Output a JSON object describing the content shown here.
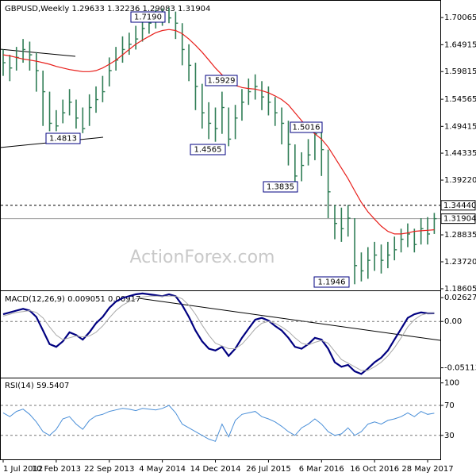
{
  "chart_data": [
    {
      "type": "ohlc",
      "title": "GBPUSD,Weekly  1.29633 1.32236 1.29083 1.31904",
      "watermark": "ActionForex.com",
      "categories": [
        "1 Jul 2012",
        null,
        null,
        null,
        null,
        null,
        null,
        null,
        "10 Feb 2013",
        null,
        null,
        null,
        null,
        null,
        null,
        null,
        "22 Sep 2013",
        null,
        null,
        null,
        null,
        null,
        null,
        null,
        "4 May 2014",
        null,
        null,
        null,
        null,
        null,
        null,
        null,
        "14 Dec 2014",
        null,
        null,
        null,
        null,
        null,
        null,
        null,
        "26 Jul 2015",
        null,
        null,
        null,
        null,
        null,
        null,
        null,
        "6 Mar 2016",
        null,
        null,
        null,
        null,
        null,
        null,
        null,
        "16 Oct 2016",
        null,
        null,
        null,
        null,
        null,
        null,
        null,
        "28 May 2017",
        null
      ],
      "ohlc": {
        "color": "#2f7d55",
        "high": [
          1.64,
          1.63,
          1.645,
          1.66,
          1.655,
          1.635,
          1.6,
          1.56,
          1.525,
          1.545,
          1.565,
          1.545,
          1.53,
          1.555,
          1.57,
          1.59,
          1.625,
          1.645,
          1.665,
          1.672,
          1.685,
          1.7,
          1.71,
          1.716,
          1.718,
          1.719,
          1.712,
          1.69,
          1.65,
          1.615,
          1.575,
          1.54,
          1.53,
          1.56,
          1.53,
          1.535,
          1.565,
          1.585,
          1.5929,
          1.58,
          1.57,
          1.55,
          1.53,
          1.505,
          1.46,
          1.445,
          1.47,
          1.5016,
          1.49,
          1.45,
          1.345,
          1.34,
          1.345,
          1.32,
          1.255,
          1.265,
          1.275,
          1.27,
          1.275,
          1.285,
          1.3,
          1.31,
          1.3,
          1.32,
          1.322,
          1.33
        ],
        "low": [
          1.59,
          1.58,
          1.6,
          1.615,
          1.6,
          1.56,
          1.495,
          1.485,
          1.485,
          1.5,
          1.515,
          1.49,
          1.4813,
          1.495,
          1.52,
          1.54,
          1.57,
          1.6,
          1.615,
          1.63,
          1.64,
          1.655,
          1.67,
          1.68,
          1.685,
          1.69,
          1.66,
          1.61,
          1.58,
          1.525,
          1.49,
          1.47,
          1.465,
          1.48,
          1.4565,
          1.47,
          1.505,
          1.535,
          1.545,
          1.525,
          1.515,
          1.495,
          1.46,
          1.42,
          1.3835,
          1.39,
          1.42,
          1.43,
          1.4,
          1.32,
          1.28,
          1.275,
          1.285,
          1.1946,
          1.2,
          1.205,
          1.22,
          1.215,
          1.225,
          1.24,
          1.255,
          1.265,
          1.255,
          1.27,
          1.27,
          1.29
        ],
        "close": [
          1.615,
          1.605,
          1.625,
          1.64,
          1.63,
          1.6,
          1.56,
          1.5,
          1.495,
          1.52,
          1.54,
          1.51,
          1.49,
          1.53,
          1.545,
          1.56,
          1.6,
          1.62,
          1.64,
          1.65,
          1.66,
          1.68,
          1.69,
          1.7,
          1.705,
          1.7,
          1.69,
          1.64,
          1.61,
          1.57,
          1.52,
          1.5,
          1.49,
          1.53,
          1.47,
          1.51,
          1.54,
          1.56,
          1.57,
          1.55,
          1.54,
          1.52,
          1.5,
          1.46,
          1.4,
          1.42,
          1.44,
          1.48,
          1.45,
          1.37,
          1.31,
          1.3,
          1.32,
          1.23,
          1.22,
          1.24,
          1.25,
          1.24,
          1.25,
          1.26,
          1.28,
          1.29,
          1.27,
          1.3,
          1.29,
          1.31904
        ]
      },
      "overlay": {
        "color": "#e8201c",
        "values": [
          1.63,
          1.628,
          1.625,
          1.622,
          1.62,
          1.618,
          1.615,
          1.612,
          1.608,
          1.605,
          1.602,
          1.6,
          1.598,
          1.598,
          1.6,
          1.605,
          1.612,
          1.62,
          1.63,
          1.64,
          1.65,
          1.658,
          1.665,
          1.672,
          1.676,
          1.678,
          1.676,
          1.67,
          1.66,
          1.648,
          1.635,
          1.62,
          1.605,
          1.592,
          1.58,
          1.572,
          1.568,
          1.566,
          1.565,
          1.562,
          1.558,
          1.552,
          1.545,
          1.535,
          1.52,
          1.505,
          1.49,
          1.48,
          1.47,
          1.455,
          1.435,
          1.415,
          1.395,
          1.372,
          1.35,
          1.332,
          1.318,
          1.305,
          1.295,
          1.29,
          1.29,
          1.292,
          1.295,
          1.296,
          1.297,
          1.298
        ]
      },
      "annotations": [
        "1.7190",
        "1.5929",
        "1.4813",
        "1.5016",
        "1.4565",
        "1.3835",
        "1.1946"
      ],
      "levels": [
        {
          "value": 1.3444,
          "label": "1.34440",
          "style": "dashed"
        },
        {
          "value": 1.31904,
          "label": "1.31904",
          "style": "solid"
        }
      ],
      "ylim": [
        1.183,
        1.734
      ],
      "yticks": [
        1.70065,
        1.64915,
        1.59815,
        1.54565,
        1.49415,
        1.44335,
        {
          "value": 1.3922,
          "label": "1.39220"
        },
        1.28835,
        {
          "value": 1.2372,
          "label": "1.23720"
        },
        1.18605
      ]
    },
    {
      "type": "line",
      "title": "MACD(12,26,9) 0.009051 0.00917",
      "series": [
        {
          "color": "#000080",
          "width": 2.2,
          "values": [
            0.008,
            0.01,
            0.012,
            0.014,
            0.012,
            0.005,
            -0.01,
            -0.025,
            -0.028,
            -0.022,
            -0.012,
            -0.015,
            -0.02,
            -0.012,
            -0.002,
            0.005,
            0.015,
            0.022,
            0.026,
            0.028,
            0.03,
            0.031,
            0.03,
            0.029,
            0.028,
            0.03,
            0.028,
            0.018,
            0.005,
            -0.01,
            -0.022,
            -0.03,
            -0.032,
            -0.028,
            -0.038,
            -0.03,
            -0.018,
            -0.008,
            0.002,
            0.004,
            0.001,
            -0.005,
            -0.01,
            -0.018,
            -0.028,
            -0.03,
            -0.025,
            -0.018,
            -0.02,
            -0.03,
            -0.045,
            -0.05,
            -0.048,
            -0.055,
            -0.058,
            -0.052,
            -0.045,
            -0.04,
            -0.032,
            -0.02,
            -0.008,
            0.004,
            0.008,
            0.01,
            0.009,
            0.009051
          ]
        },
        {
          "color": "#a8a8a8",
          "width": 1,
          "values": [
            0.006,
            0.008,
            0.01,
            0.011,
            0.012,
            0.01,
            0.004,
            -0.006,
            -0.015,
            -0.02,
            -0.018,
            -0.016,
            -0.017,
            -0.016,
            -0.012,
            -0.005,
            0.004,
            0.012,
            0.018,
            0.022,
            0.025,
            0.027,
            0.028,
            0.028,
            0.028,
            0.028,
            0.028,
            0.025,
            0.018,
            0.008,
            -0.004,
            -0.015,
            -0.024,
            -0.027,
            -0.03,
            -0.03,
            -0.025,
            -0.017,
            -0.008,
            -0.002,
            0.0,
            -0.002,
            -0.006,
            -0.011,
            -0.018,
            -0.024,
            -0.026,
            -0.023,
            -0.021,
            -0.024,
            -0.033,
            -0.042,
            -0.046,
            -0.05,
            -0.054,
            -0.054,
            -0.05,
            -0.045,
            -0.038,
            -0.029,
            -0.018,
            -0.006,
            0.002,
            0.007,
            0.009,
            0.00917
          ]
        }
      ],
      "dashed_levels": [
        0
      ],
      "ylim": [
        -0.062,
        0.0335
      ],
      "yticks": [
        0.026276,
        {
          "value": 0,
          "label": "0.00"
        },
        -0.051137
      ]
    },
    {
      "type": "line",
      "title": "RSI(14) 59.5407",
      "series": [
        {
          "color": "#4a8fd8",
          "width": 1,
          "values": [
            60,
            55,
            62,
            65,
            58,
            48,
            35,
            30,
            38,
            52,
            55,
            45,
            38,
            50,
            56,
            58,
            62,
            64,
            66,
            65,
            63,
            66,
            65,
            64,
            66,
            70,
            60,
            45,
            40,
            35,
            30,
            25,
            22,
            45,
            28,
            50,
            58,
            60,
            62,
            55,
            52,
            48,
            42,
            35,
            30,
            40,
            45,
            52,
            45,
            35,
            30,
            32,
            40,
            30,
            35,
            45,
            48,
            45,
            50,
            52,
            55,
            60,
            55,
            62,
            58,
            59.5407
          ]
        }
      ],
      "dashed_levels": [
        70,
        30
      ],
      "ylim": [
        -2,
        106
      ],
      "yticks": [
        100,
        70,
        30
      ]
    }
  ]
}
